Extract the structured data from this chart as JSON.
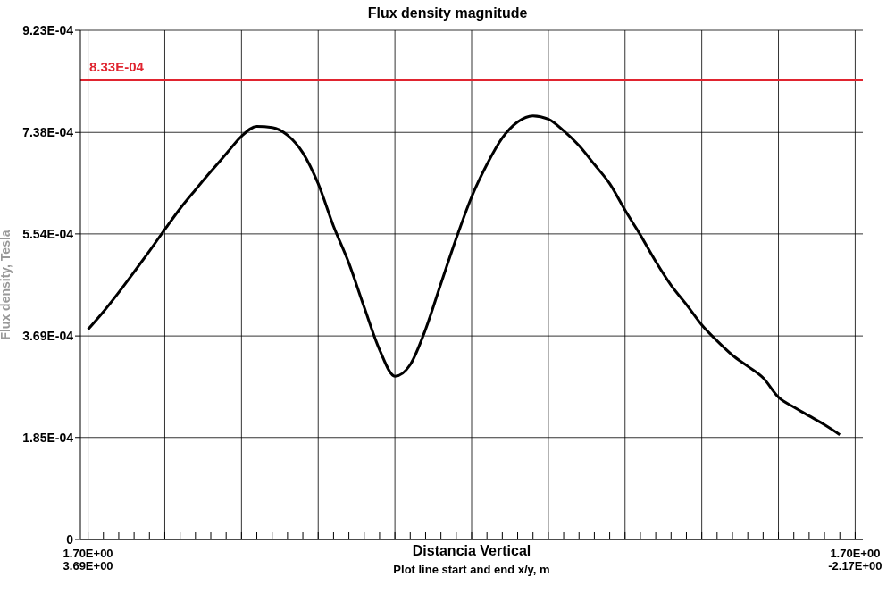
{
  "chart_data": {
    "type": "line",
    "title": "Flux density magnitude",
    "xlabel": "Distancia Vertical",
    "ylabel": "Flux density, Tesla",
    "annotations": [
      "Plot line start and end x/y,  m"
    ],
    "categories": [
      "1.70E+00\n3.69E+00",
      null,
      null,
      null,
      null,
      null,
      null,
      null,
      null,
      null,
      null,
      null,
      null,
      null,
      null,
      null,
      null,
      null,
      null,
      null,
      null,
      null,
      null,
      null,
      null,
      null,
      null,
      null,
      null,
      null,
      null,
      null,
      null,
      null,
      null,
      null,
      null,
      null,
      null,
      null,
      null,
      null,
      null,
      null,
      null,
      null,
      null,
      null,
      null,
      null,
      "1.70E+00\n-2.17E+00"
    ],
    "series": [
      {
        "color": "#000000",
        "values": [
          0.000381,
          0.000413,
          0.000448,
          0.000485,
          0.000523,
          0.000562,
          0.0006,
          0.000634,
          0.000667,
          0.000699,
          0.000731,
          0.000749,
          0.000747,
          0.000733,
          0.000701,
          0.000645,
          0.000568,
          0.000501,
          0.000421,
          0.000344,
          0.000296,
          0.000317,
          0.000381,
          0.000464,
          0.000546,
          0.000621,
          0.00068,
          0.000728,
          0.000757,
          0.000768,
          0.000762,
          0.000741,
          0.000714,
          0.00068,
          0.000645,
          0.000597,
          0.000552,
          0.000504,
          0.000461,
          0.000426,
          0.000389,
          0.00036,
          0.000334,
          0.000314,
          0.000293,
          0.000258,
          0.00024,
          0.000224,
          0.000208,
          0.00019,
          null
        ]
      }
    ],
    "ylim": [
      0,
      0.000923
    ],
    "yticks": [
      0,
      {
        "value": 0.000185,
        "label": "1.85E-04"
      },
      {
        "value": 0.000369,
        "label": "3.69E-04"
      },
      {
        "value": 0.000554,
        "label": "5.54E-04"
      },
      {
        "value": 0.000738,
        "label": "7.38E-04"
      },
      {
        "value": 0.000923,
        "label": "9.23E-04"
      }
    ],
    "ref_lines": [
      {
        "axis": "y",
        "value": 0.000833,
        "label": "8.33E-04",
        "color": "#e0242f"
      }
    ],
    "grid": true,
    "marker": "none",
    "line_style": "solid"
  }
}
